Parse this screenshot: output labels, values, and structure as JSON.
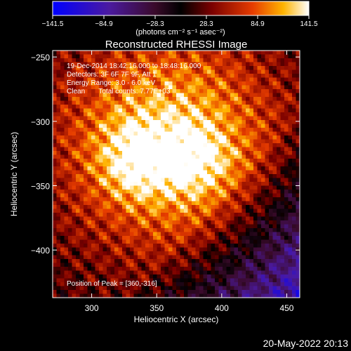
{
  "chart_data": {
    "type": "heatmap",
    "title": "Reconstructed RHESSI Image",
    "xlabel": "Heliocentric X (arcsec)",
    "ylabel": "Heliocentric Y (arcsec)",
    "xlim": [
      270,
      460
    ],
    "ylim": [
      -437,
      -245
    ],
    "x_ticks": [
      300,
      350,
      400,
      450
    ],
    "x_tick_labels": [
      "300",
      "350",
      "400",
      "450"
    ],
    "y_ticks": [
      -250,
      -300,
      -350,
      -400
    ],
    "y_tick_labels": [
      "−250",
      "−300",
      "−350",
      "−400"
    ],
    "colorbar": {
      "min": -141.5,
      "max": 141.5,
      "tick_values": [
        -141.5,
        -84.9,
        -28.3,
        28.3,
        84.9,
        141.5
      ],
      "tick_labels": [
        "−141.5",
        "−84.9",
        "−28.3",
        "28.3",
        "84.9",
        "141.5"
      ],
      "units_label": "(photons cm⁻² s⁻¹ asec⁻²)"
    },
    "annotations": [
      "19-Dec-2014 18:42:16.000 to 18:48:16.000",
      "Detectors: 3F 6F 7F 9F, Att 1",
      "Energy Range: 3.0 - 6.0 keV",
      "Clean       Total counts: 7.77E+03"
    ],
    "peak_label": "Position of Peak = [360,-316]",
    "peak_position": [
      360,
      -316
    ],
    "colors": {
      "background": "#000000",
      "text": "#ffffff"
    }
  },
  "footer": {
    "timestamp": "20-May-2022 20:13"
  }
}
